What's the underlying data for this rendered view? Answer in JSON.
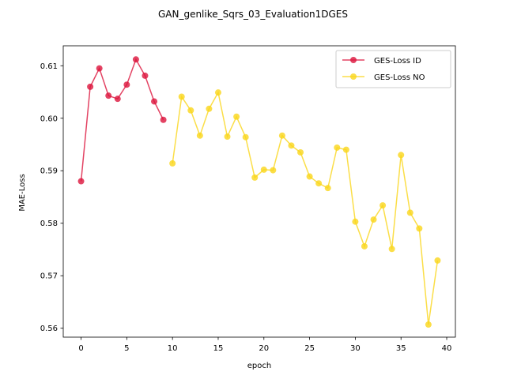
{
  "chart_data": {
    "type": "line",
    "title": "GAN_genlike_Sqrs_03_Evaluation1DGES",
    "xlabel": "epoch",
    "ylabel": "MAE-Loss",
    "xlim": [
      -1.95,
      40.95
    ],
    "ylim": [
      0.5583,
      0.6138
    ],
    "xticks": [
      0,
      5,
      10,
      15,
      20,
      25,
      30,
      35,
      40
    ],
    "xtick_labels": [
      "0",
      "5",
      "10",
      "15",
      "20",
      "25",
      "30",
      "35",
      "40"
    ],
    "yticks": [
      0.56,
      0.57,
      0.58,
      0.59,
      0.6,
      0.61
    ],
    "ytick_labels": [
      "0.56",
      "0.57",
      "0.58",
      "0.59",
      "0.60",
      "0.61"
    ],
    "grid": false,
    "legend_position": "upper right",
    "series": [
      {
        "name": "GES-Loss ID",
        "color": "#dc143c",
        "x": [
          0,
          1,
          2,
          3,
          4,
          5,
          6,
          7,
          8,
          9
        ],
        "y": [
          0.588,
          0.606,
          0.6095,
          0.6043,
          0.6037,
          0.6064,
          0.6112,
          0.6081,
          0.6032,
          0.5997
        ]
      },
      {
        "name": "GES-Loss NO",
        "color": "#fad61a",
        "x": [
          10,
          11,
          12,
          13,
          14,
          15,
          16,
          17,
          18,
          19,
          20,
          21,
          22,
          23,
          24,
          25,
          26,
          27,
          28,
          29,
          30,
          31,
          32,
          33,
          34,
          35,
          36,
          37,
          38,
          39
        ],
        "y": [
          0.5914,
          0.6041,
          0.6015,
          0.5967,
          0.6018,
          0.6049,
          0.5965,
          0.6003,
          0.5964,
          0.5887,
          0.5902,
          0.5901,
          0.5967,
          0.5948,
          0.5935,
          0.5889,
          0.5876,
          0.5867,
          0.5944,
          0.594,
          0.5803,
          0.5756,
          0.5807,
          0.5834,
          0.5751,
          0.593,
          0.582,
          0.579,
          0.5607,
          0.5729
        ]
      }
    ]
  }
}
